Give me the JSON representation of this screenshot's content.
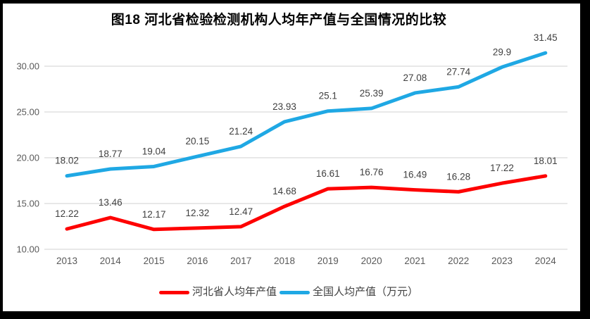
{
  "title": "图18 河北省检验检测机构人均年产值与全国情况的比较",
  "chart_data": {
    "type": "line",
    "title": "图18 河北省检验检测机构人均年产值与全国情况的比较",
    "categories": [
      "2013",
      "2014",
      "2015",
      "2016",
      "2017",
      "2018",
      "2019",
      "2020",
      "2021",
      "2022",
      "2023",
      "2024"
    ],
    "series": [
      {
        "name": "河北省人均年产值",
        "color": "#FE0000",
        "values": [
          12.22,
          13.46,
          12.17,
          12.32,
          12.47,
          14.68,
          16.61,
          16.76,
          16.49,
          16.28,
          17.22,
          18.01
        ]
      },
      {
        "name": "全国人均产值（万元）",
        "color": "#1FA8E4",
        "values": [
          18.02,
          18.77,
          19.04,
          20.15,
          21.24,
          23.93,
          25.1,
          25.39,
          27.08,
          27.74,
          29.9,
          31.45
        ]
      }
    ],
    "xlabel": "",
    "ylabel": "",
    "ylim": [
      10,
      32.5
    ],
    "yticks": [
      10,
      15,
      20,
      25,
      30
    ],
    "ytick_labels": [
      "10.00",
      "15.00",
      "20.00",
      "25.00",
      "30.00"
    ],
    "grid": "horizontal-only",
    "gridline_color": "#DBDBDB",
    "axis_label_color": "#595959",
    "data_label_color": "#3F3F3F",
    "data_labels_shown": true,
    "legend_position": "bottom"
  }
}
